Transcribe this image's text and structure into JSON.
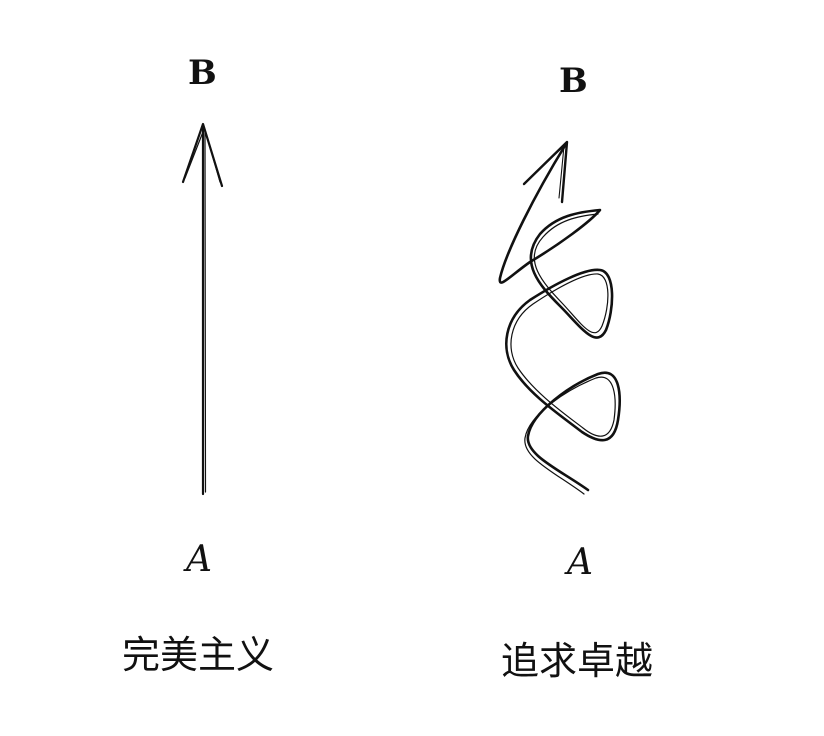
{
  "left_panel": {
    "top_label": "B",
    "bottom_label": "A",
    "caption": "完美主义"
  },
  "right_panel": {
    "top_label": "B",
    "bottom_label": "A",
    "caption": "追求卓越"
  },
  "colors": {
    "ink": "#111111",
    "background": "#ffffff"
  }
}
